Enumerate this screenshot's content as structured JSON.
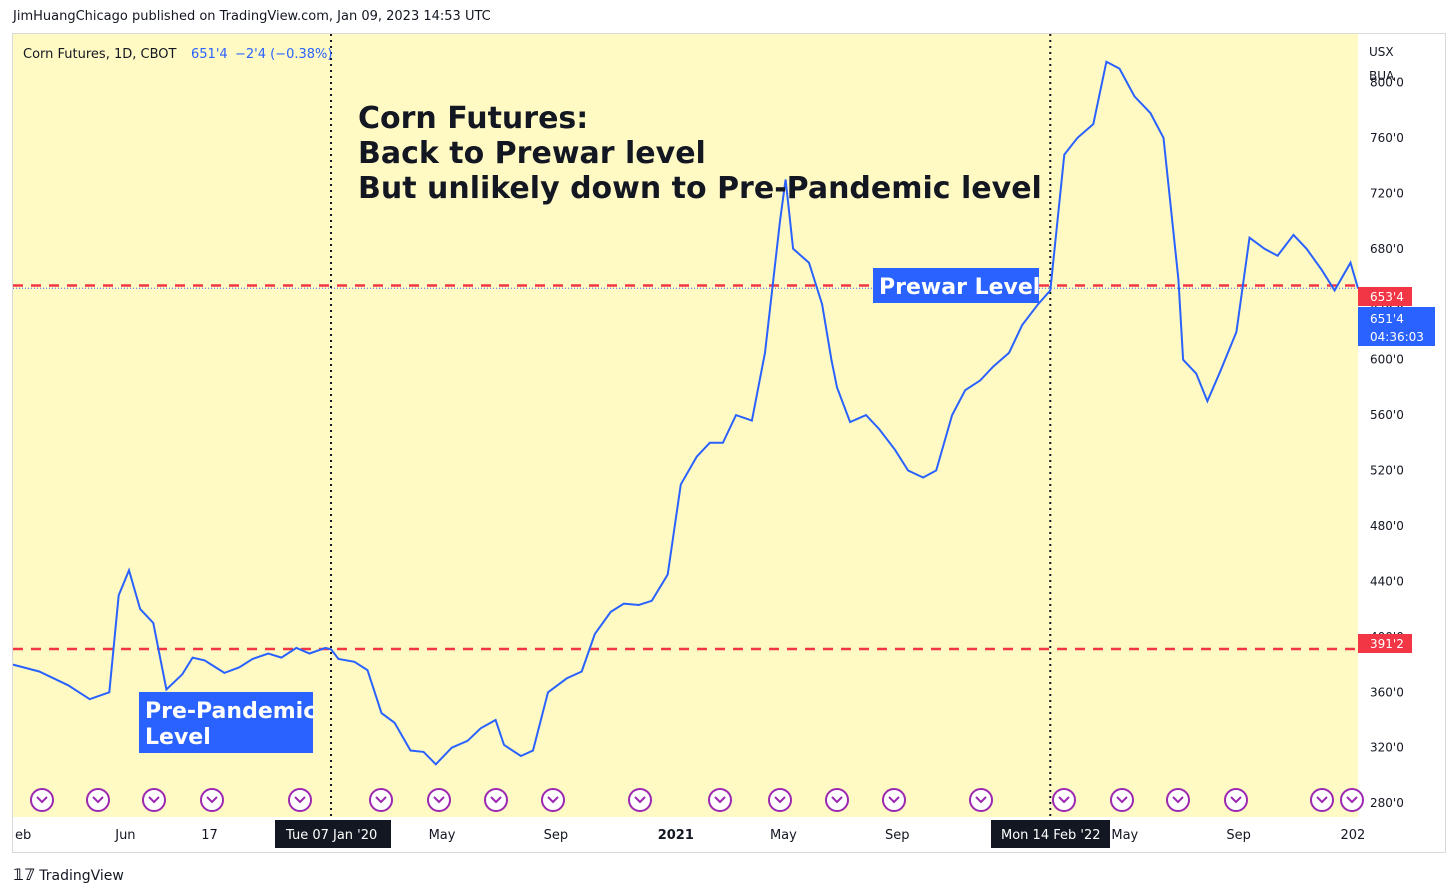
{
  "header": {
    "publisher": "JimHuangChicago published on TradingView.com, Jan 09, 2023 14:53 UTC"
  },
  "symbol": {
    "name": "Corn Futures, 1D, CBOT",
    "price": "651'4",
    "change": "−2'4 (−0.38%)"
  },
  "annotation": {
    "line1": "Corn Futures:",
    "line2": "Back to Prewar level",
    "line3": "But unlikely down to Pre-Pandemic level"
  },
  "labels": {
    "prewar": "Prewar Level",
    "prepandemic_1": "Pre-Pandemic",
    "prepandemic_2": "Level"
  },
  "price_scale": {
    "currency": "USX",
    "unit": "BUA",
    "ticks": [
      "800'0",
      "760'0",
      "720'0",
      "680'0",
      "640'0",
      "600'0",
      "560'0",
      "520'0",
      "480'0",
      "440'0",
      "400'0",
      "360'0",
      "320'0",
      "280'0"
    ],
    "tag_prewar": "653'4",
    "tag_last": "651'4",
    "tag_countdown": "04:36:03",
    "tag_prepandemic": "391'2"
  },
  "time_scale": {
    "ticks": [
      "eb",
      "Jun",
      "17",
      "May",
      "Sep",
      "2021",
      "May",
      "Sep",
      "May",
      "Sep",
      "202"
    ],
    "marker_1": "Tue 07 Jan '20",
    "marker_2": "Mon 14 Feb '22"
  },
  "footer": {
    "brand": "TradingView"
  },
  "colors": {
    "background": "#fff9c4",
    "line": "#2962ff",
    "level_line": "#f23645",
    "label_bg": "#2962ff"
  },
  "chart_data": {
    "type": "line",
    "title": "Corn Futures, 1D, CBOT",
    "ylim": [
      270,
      835
    ],
    "xlim": [
      "2019-02-01",
      "2023-01-09"
    ],
    "levels": [
      {
        "label": "Prewar Level",
        "value": 653.5
      },
      {
        "label": "Pre-Pandemic Level",
        "value": 391.25
      }
    ],
    "verticals": [
      "2020-01-07",
      "2022-02-14"
    ],
    "series": [
      {
        "x": [
          "2019-02-01",
          "2019-03-01",
          "2019-04-01",
          "2019-04-24",
          "2019-05-15",
          "2019-05-25",
          "2019-06-05",
          "2019-06-17",
          "2019-07-01",
          "2019-07-15",
          "2019-08-01",
          "2019-08-12",
          "2019-08-25",
          "2019-09-01",
          "2019-09-15",
          "2019-10-01",
          "2019-10-15",
          "2019-11-01",
          "2019-11-15",
          "2019-12-01",
          "2019-12-15",
          "2020-01-01",
          "2020-01-07",
          "2020-01-15",
          "2020-02-01",
          "2020-02-15",
          "2020-03-01",
          "2020-03-15",
          "2020-04-01",
          "2020-04-15",
          "2020-04-28",
          "2020-05-15",
          "2020-06-01",
          "2020-06-15",
          "2020-07-01",
          "2020-07-10",
          "2020-07-28",
          "2020-08-10",
          "2020-08-26",
          "2020-09-15",
          "2020-10-01",
          "2020-10-15",
          "2020-11-01",
          "2020-11-15",
          "2020-12-01",
          "2020-12-15",
          "2021-01-01",
          "2021-01-15",
          "2021-02-01",
          "2021-02-15",
          "2021-03-01",
          "2021-03-15",
          "2021-04-01",
          "2021-04-15",
          "2021-05-01",
          "2021-05-07",
          "2021-05-15",
          "2021-06-01",
          "2021-06-15",
          "2021-06-25",
          "2021-07-01",
          "2021-07-15",
          "2021-08-01",
          "2021-08-15",
          "2021-09-01",
          "2021-09-15",
          "2021-10-01",
          "2021-10-15",
          "2021-11-01",
          "2021-11-15",
          "2021-12-01",
          "2021-12-15",
          "2022-01-01",
          "2022-01-15",
          "2022-02-01",
          "2022-02-14",
          "2022-03-01",
          "2022-03-15",
          "2022-04-01",
          "2022-04-15",
          "2022-04-29",
          "2022-05-15",
          "2022-06-01",
          "2022-06-15",
          "2022-07-01",
          "2022-07-06",
          "2022-07-20",
          "2022-08-01",
          "2022-08-15",
          "2022-09-01",
          "2022-09-15",
          "2022-10-01",
          "2022-10-15",
          "2022-11-01",
          "2022-11-15",
          "2022-12-01",
          "2022-12-15",
          "2023-01-01",
          "2023-01-09"
        ],
        "y": [
          380,
          375,
          365,
          355,
          360,
          430,
          448,
          420,
          410,
          362,
          373,
          385,
          383,
          380,
          374,
          378,
          384,
          388,
          385,
          392,
          388,
          392,
          391,
          384,
          382,
          376,
          345,
          338,
          318,
          317,
          308,
          320,
          325,
          334,
          340,
          322,
          314,
          318,
          360,
          370,
          375,
          402,
          418,
          424,
          423,
          426,
          445,
          510,
          530,
          540,
          540,
          560,
          556,
          605,
          700,
          730,
          680,
          670,
          640,
          600,
          580,
          555,
          560,
          550,
          535,
          520,
          515,
          520,
          560,
          578,
          585,
          595,
          605,
          625,
          640,
          650,
          748,
          760,
          770,
          815,
          810,
          790,
          778,
          760,
          658,
          600,
          590,
          570,
          592,
          620,
          688,
          680,
          675,
          690,
          680,
          665,
          650,
          670,
          651.5
        ]
      }
    ]
  }
}
